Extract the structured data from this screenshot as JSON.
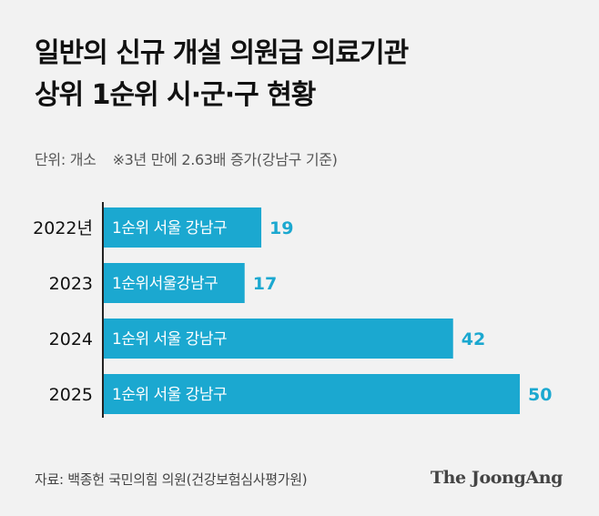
{
  "title": {
    "line1": "일반의 신규 개설 의원급 의료기관",
    "line2": "상위 1순위 시·군·구 현황"
  },
  "subtitle": {
    "unit": "단위: 개소",
    "note": "※3년 만에 2.63배 증가(강남구 기준)"
  },
  "colors": {
    "bar": "#1ba8d0",
    "value_label": "#1ba8d0",
    "bar_text": "#ffffff",
    "axis": "#222222",
    "background": "#f2f2f2"
  },
  "chart_data": {
    "type": "bar",
    "orientation": "horizontal",
    "categories": [
      "2022년",
      "2023",
      "2024",
      "2025"
    ],
    "values": [
      19,
      17,
      42,
      50
    ],
    "bar_labels": [
      "1순위 서울 강남구",
      "1순위서울강남구",
      "1순위 서울 강남구",
      "1순위 서울 강남구"
    ],
    "xlim": [
      0,
      50
    ],
    "grid": false,
    "legend": "none"
  },
  "footer": {
    "source": "자료: 백종헌 국민의힘 의원(건강보험심사평가원)",
    "logo": "The JoongAng"
  }
}
